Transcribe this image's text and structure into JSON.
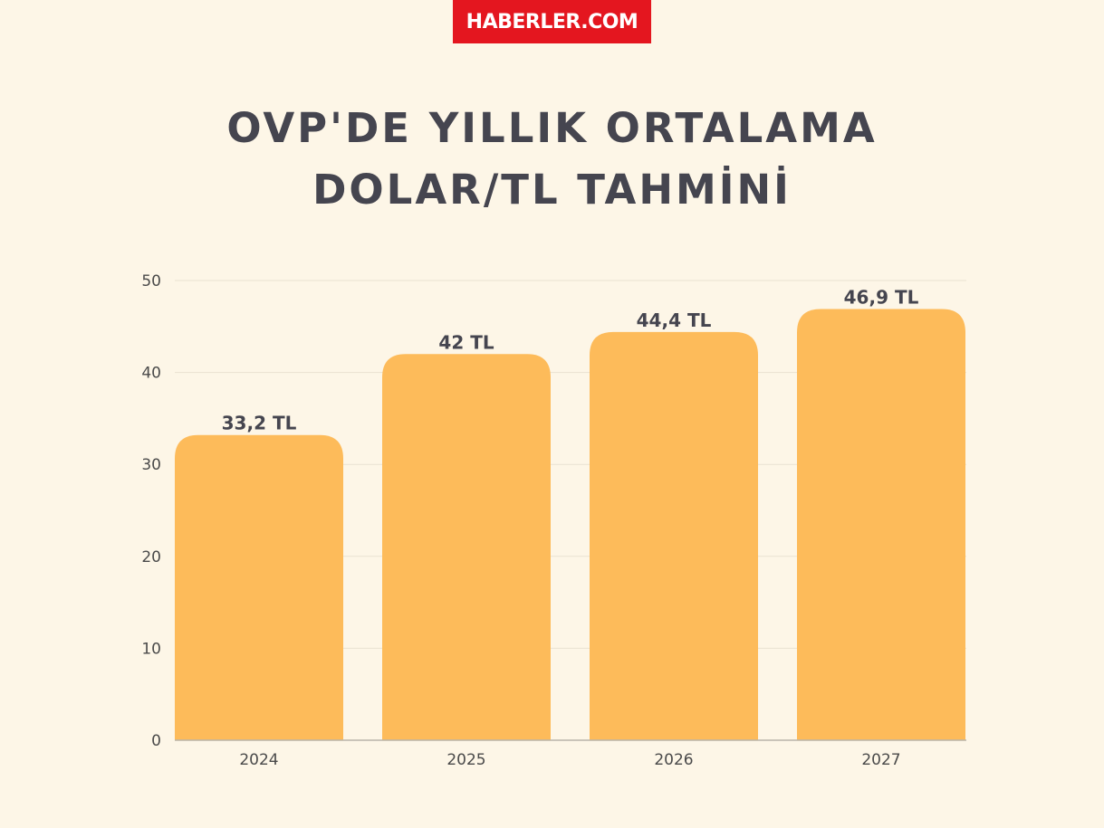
{
  "brand": {
    "logo_text": "HABERLER.COM",
    "color": "#e4161f"
  },
  "title": {
    "line1": "OVP'DE YILLIK ORTALAMA",
    "line2": "DOLAR/TL TAHMİNİ"
  },
  "chart_data": {
    "type": "bar",
    "title": "OVP'DE YILLIK ORTALAMA DOLAR/TL TAHMİNİ",
    "xlabel": "",
    "ylabel": "",
    "categories": [
      "2024",
      "2025",
      "2026",
      "2027"
    ],
    "values": [
      33.2,
      42,
      44.4,
      46.9
    ],
    "data_labels": [
      "33,2 TL",
      "42 TL",
      "44,4 TL",
      "46,9 TL"
    ],
    "ylim": [
      0,
      50
    ],
    "yticks": [
      0,
      10,
      20,
      30,
      40,
      50
    ],
    "grid": true,
    "bar_color": "#fdbb5a",
    "background_color": "#fdf6e7"
  }
}
